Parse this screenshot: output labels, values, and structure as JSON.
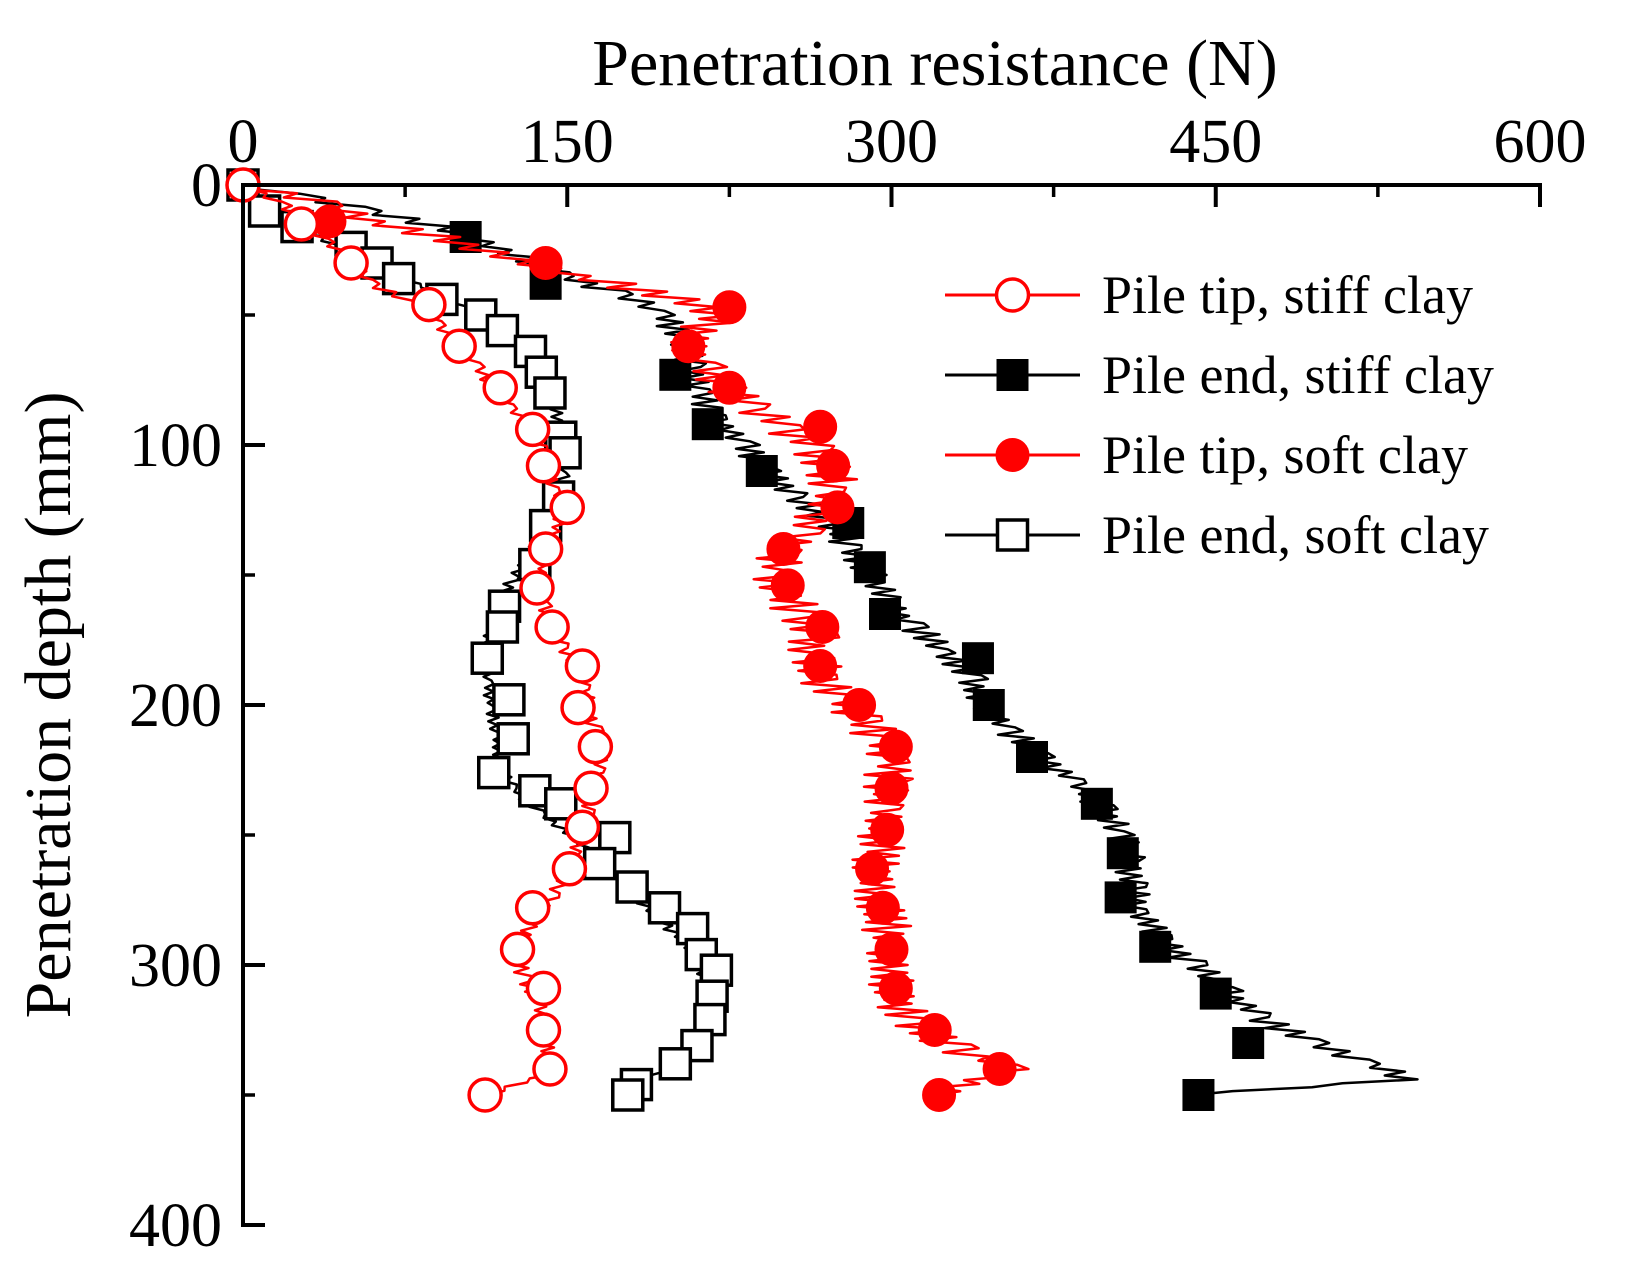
{
  "chart_data": {
    "type": "line",
    "title": "",
    "xlabel": "Penetration resistance (N)",
    "ylabel": "Penetration depth (mm)",
    "x_axis_position": "top",
    "y_axis_inverted": true,
    "xlim": [
      0,
      600
    ],
    "ylim": [
      0,
      400
    ],
    "xticks": [
      0,
      150,
      300,
      450,
      600
    ],
    "yticks": [
      0,
      100,
      200,
      300,
      400
    ],
    "grid": false,
    "legend_position": "top-right",
    "colors": {
      "red": "#ff0000",
      "black": "#000000"
    },
    "series": [
      {
        "name": "Pile tip, stiff clay",
        "color": "#ff0000",
        "marker": "open-circle",
        "fluctuation": 4,
        "points": [
          [
            0,
            0
          ],
          [
            20,
            8
          ],
          [
            27,
            15
          ],
          [
            40,
            22
          ],
          [
            50,
            30
          ],
          [
            60,
            38
          ],
          [
            80,
            46
          ],
          [
            92,
            54
          ],
          [
            100,
            62
          ],
          [
            108,
            70
          ],
          [
            116,
            78
          ],
          [
            125,
            86
          ],
          [
            132,
            94
          ],
          [
            138,
            102
          ],
          [
            142,
            110
          ],
          [
            145,
            118
          ],
          [
            148,
            124
          ],
          [
            146,
            130
          ],
          [
            143,
            138
          ],
          [
            139,
            146
          ],
          [
            136,
            154
          ],
          [
            139,
            162
          ],
          [
            142,
            170
          ],
          [
            148,
            178
          ],
          [
            155,
            186
          ],
          [
            158,
            194
          ],
          [
            160,
            202
          ],
          [
            163,
            210
          ],
          [
            166,
            218
          ],
          [
            164,
            226
          ],
          [
            162,
            234
          ],
          [
            160,
            242
          ],
          [
            157,
            250
          ],
          [
            153,
            258
          ],
          [
            149,
            266
          ],
          [
            143,
            274
          ],
          [
            135,
            282
          ],
          [
            128,
            290
          ],
          [
            127,
            298
          ],
          [
            131,
            306
          ],
          [
            138,
            316
          ],
          [
            139,
            326
          ],
          [
            141,
            336
          ],
          [
            141,
            342
          ],
          [
            112,
            350
          ]
        ],
        "markers": [
          [
            0,
            0
          ],
          [
            27,
            15
          ],
          [
            50,
            30
          ],
          [
            86,
            46
          ],
          [
            100,
            62
          ],
          [
            119,
            78
          ],
          [
            134,
            94
          ],
          [
            139,
            108
          ],
          [
            150,
            124
          ],
          [
            140,
            140
          ],
          [
            136,
            155
          ],
          [
            143,
            170
          ],
          [
            157,
            185
          ],
          [
            155,
            201
          ],
          [
            163,
            216
          ],
          [
            161,
            232
          ],
          [
            157,
            247
          ],
          [
            151,
            263
          ],
          [
            134,
            278
          ],
          [
            127,
            294
          ],
          [
            139,
            309
          ],
          [
            139,
            325
          ],
          [
            142,
            340
          ],
          [
            112,
            350
          ]
        ]
      },
      {
        "name": "Pile end, stiff clay",
        "color": "#000000",
        "marker": "filled-square",
        "fluctuation": 8,
        "points": [
          [
            0,
            0
          ],
          [
            30,
            5
          ],
          [
            60,
            10
          ],
          [
            90,
            16
          ],
          [
            110,
            22
          ],
          [
            130,
            28
          ],
          [
            148,
            35
          ],
          [
            175,
            42
          ],
          [
            195,
            50
          ],
          [
            205,
            60
          ],
          [
            208,
            70
          ],
          [
            212,
            80
          ],
          [
            220,
            90
          ],
          [
            232,
            100
          ],
          [
            243,
            110
          ],
          [
            255,
            120
          ],
          [
            272,
            130
          ],
          [
            282,
            140
          ],
          [
            290,
            150
          ],
          [
            298,
            160
          ],
          [
            310,
            170
          ],
          [
            325,
            180
          ],
          [
            337,
            190
          ],
          [
            343,
            200
          ],
          [
            355,
            210
          ],
          [
            370,
            220
          ],
          [
            385,
            230
          ],
          [
            398,
            240
          ],
          [
            405,
            250
          ],
          [
            410,
            260
          ],
          [
            412,
            270
          ],
          [
            415,
            280
          ],
          [
            425,
            290
          ],
          [
            440,
            300
          ],
          [
            455,
            310
          ],
          [
            470,
            320
          ],
          [
            495,
            330
          ],
          [
            520,
            338
          ],
          [
            540,
            344
          ],
          [
            440,
            350
          ]
        ],
        "markers": [
          [
            0,
            0
          ],
          [
            103,
            20
          ],
          [
            140,
            38
          ],
          [
            200,
            73
          ],
          [
            215,
            92
          ],
          [
            240,
            110
          ],
          [
            280,
            130
          ],
          [
            290,
            147
          ],
          [
            297,
            165
          ],
          [
            340,
            182
          ],
          [
            345,
            200
          ],
          [
            365,
            220
          ],
          [
            395,
            238
          ],
          [
            407,
            257
          ],
          [
            406,
            274
          ],
          [
            422,
            293
          ],
          [
            450,
            311
          ],
          [
            465,
            330
          ],
          [
            442,
            350
          ]
        ]
      },
      {
        "name": "Pile tip, soft clay",
        "color": "#ff0000",
        "marker": "filled-circle",
        "fluctuation": 12,
        "points": [
          [
            0,
            0
          ],
          [
            40,
            8
          ],
          [
            60,
            14
          ],
          [
            90,
            20
          ],
          [
            118,
            26
          ],
          [
            140,
            32
          ],
          [
            170,
            38
          ],
          [
            200,
            44
          ],
          [
            220,
            50
          ],
          [
            212,
            56
          ],
          [
            206,
            62
          ],
          [
            213,
            70
          ],
          [
            222,
            78
          ],
          [
            236,
            86
          ],
          [
            252,
            94
          ],
          [
            265,
            102
          ],
          [
            272,
            110
          ],
          [
            272,
            118
          ],
          [
            267,
            126
          ],
          [
            258,
            134
          ],
          [
            250,
            142
          ],
          [
            246,
            150
          ],
          [
            251,
            158
          ],
          [
            258,
            166
          ],
          [
            264,
            174
          ],
          [
            264,
            182
          ],
          [
            268,
            190
          ],
          [
            278,
            198
          ],
          [
            288,
            206
          ],
          [
            295,
            214
          ],
          [
            300,
            222
          ],
          [
            298,
            230
          ],
          [
            296,
            240
          ],
          [
            296,
            252
          ],
          [
            292,
            264
          ],
          [
            295,
            276
          ],
          [
            298,
            288
          ],
          [
            300,
            300
          ],
          [
            302,
            312
          ],
          [
            310,
            322
          ],
          [
            330,
            332
          ],
          [
            355,
            340
          ],
          [
            320,
            350
          ]
        ],
        "markers": [
          [
            0,
            0
          ],
          [
            40,
            14
          ],
          [
            140,
            30
          ],
          [
            225,
            47
          ],
          [
            206,
            62
          ],
          [
            225,
            78
          ],
          [
            267,
            93
          ],
          [
            273,
            108
          ],
          [
            275,
            124
          ],
          [
            250,
            140
          ],
          [
            252,
            154
          ],
          [
            268,
            170
          ],
          [
            267,
            185
          ],
          [
            285,
            200
          ],
          [
            302,
            216
          ],
          [
            300,
            232
          ],
          [
            298,
            248
          ],
          [
            291,
            263
          ],
          [
            296,
            278
          ],
          [
            300,
            294
          ],
          [
            302,
            309
          ],
          [
            320,
            325
          ],
          [
            350,
            340
          ],
          [
            322,
            350
          ]
        ]
      },
      {
        "name": "Pile end, soft clay",
        "color": "#000000",
        "marker": "open-square",
        "fluctuation": 3,
        "points": [
          [
            0,
            0
          ],
          [
            10,
            8
          ],
          [
            20,
            14
          ],
          [
            35,
            20
          ],
          [
            50,
            26
          ],
          [
            65,
            32
          ],
          [
            80,
            38
          ],
          [
            95,
            44
          ],
          [
            112,
            50
          ],
          [
            125,
            56
          ],
          [
            132,
            64
          ],
          [
            138,
            72
          ],
          [
            143,
            82
          ],
          [
            146,
            92
          ],
          [
            148,
            102
          ],
          [
            148,
            112
          ],
          [
            144,
            122
          ],
          [
            138,
            132
          ],
          [
            132,
            142
          ],
          [
            124,
            152
          ],
          [
            118,
            162
          ],
          [
            114,
            172
          ],
          [
            112,
            182
          ],
          [
            113,
            192
          ],
          [
            115,
            202
          ],
          [
            117,
            212
          ],
          [
            118,
            222
          ],
          [
            125,
            232
          ],
          [
            138,
            242
          ],
          [
            155,
            252
          ],
          [
            168,
            262
          ],
          [
            180,
            272
          ],
          [
            192,
            282
          ],
          [
            205,
            292
          ],
          [
            212,
            302
          ],
          [
            218,
            312
          ],
          [
            216,
            322
          ],
          [
            210,
            330
          ],
          [
            200,
            338
          ],
          [
            180,
            346
          ],
          [
            178,
            350
          ]
        ],
        "markers": [
          [
            0,
            0
          ],
          [
            10,
            10
          ],
          [
            25,
            16
          ],
          [
            50,
            24
          ],
          [
            62,
            30
          ],
          [
            72,
            36
          ],
          [
            92,
            44
          ],
          [
            110,
            50
          ],
          [
            120,
            56
          ],
          [
            133,
            64
          ],
          [
            138,
            72
          ],
          [
            142,
            80
          ],
          [
            147,
            97
          ],
          [
            149,
            103
          ],
          [
            146,
            120
          ],
          [
            140,
            131
          ],
          [
            135,
            146
          ],
          [
            121,
            162
          ],
          [
            120,
            170
          ],
          [
            113,
            182
          ],
          [
            123,
            198
          ],
          [
            125,
            213
          ],
          [
            116,
            226
          ],
          [
            135,
            233
          ],
          [
            147,
            238
          ],
          [
            172,
            251
          ],
          [
            165,
            261
          ],
          [
            180,
            270
          ],
          [
            195,
            278
          ],
          [
            208,
            286
          ],
          [
            212,
            296
          ],
          [
            219,
            302
          ],
          [
            217,
            312
          ],
          [
            216,
            321
          ],
          [
            210,
            331
          ],
          [
            200,
            338
          ],
          [
            182,
            346
          ],
          [
            178,
            350
          ]
        ]
      }
    ]
  }
}
